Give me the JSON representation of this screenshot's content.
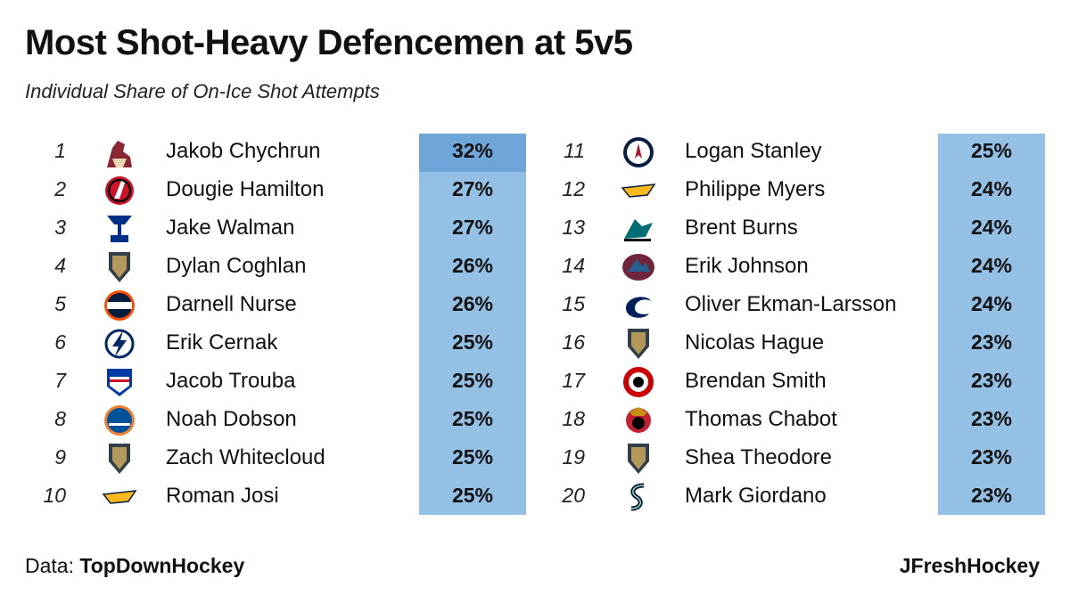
{
  "chart_data": {
    "type": "table",
    "title": "Most Shot-Heavy Defencemen at 5v5",
    "subtitle": "Individual Share of On-Ice Shot Attempts",
    "columns": [
      "rank",
      "team_logo",
      "player",
      "share"
    ],
    "rows": [
      {
        "rank": "1",
        "player": "Jakob Chychrun",
        "value": "32%",
        "team_icon": "arizona-coyotes-logo-icon",
        "logo_color": "#8c2633"
      },
      {
        "rank": "2",
        "player": "Dougie Hamilton",
        "value": "27%",
        "team_icon": "new-jersey-devils-logo-icon",
        "logo_color": "#ce1126"
      },
      {
        "rank": "3",
        "player": "Jake Walman",
        "value": "27%",
        "team_icon": "st-louis-blues-logo-icon",
        "logo_color": "#002f87"
      },
      {
        "rank": "4",
        "player": "Dylan Coghlan",
        "value": "26%",
        "team_icon": "vegas-golden-knights-logo-icon",
        "logo_color": "#b4975a"
      },
      {
        "rank": "5",
        "player": "Darnell Nurse",
        "value": "26%",
        "team_icon": "edmonton-oilers-logo-icon",
        "logo_color": "#041e42"
      },
      {
        "rank": "6",
        "player": "Erik Cernak",
        "value": "25%",
        "team_icon": "tampa-bay-lightning-logo-icon",
        "logo_color": "#002868"
      },
      {
        "rank": "7",
        "player": "Jacob Trouba",
        "value": "25%",
        "team_icon": "new-york-rangers-logo-icon",
        "logo_color": "#0038a8"
      },
      {
        "rank": "8",
        "player": "Noah Dobson",
        "value": "25%",
        "team_icon": "new-york-islanders-logo-icon",
        "logo_color": "#00539b"
      },
      {
        "rank": "9",
        "player": "Zach Whitecloud",
        "value": "25%",
        "team_icon": "vegas-golden-knights-logo-icon",
        "logo_color": "#b4975a"
      },
      {
        "rank": "10",
        "player": "Roman Josi",
        "value": "25%",
        "team_icon": "nashville-predators-logo-icon",
        "logo_color": "#ffb81c"
      },
      {
        "rank": "11",
        "player": "Logan Stanley",
        "value": "25%",
        "team_icon": "winnipeg-jets-logo-icon",
        "logo_color": "#041e42"
      },
      {
        "rank": "12",
        "player": "Philippe Myers",
        "value": "24%",
        "team_icon": "nashville-predators-logo-icon",
        "logo_color": "#ffb81c"
      },
      {
        "rank": "13",
        "player": "Brent Burns",
        "value": "24%",
        "team_icon": "san-jose-sharks-logo-icon",
        "logo_color": "#006d75"
      },
      {
        "rank": "14",
        "player": "Erik Johnson",
        "value": "24%",
        "team_icon": "colorado-avalanche-logo-icon",
        "logo_color": "#6f263d"
      },
      {
        "rank": "15",
        "player": "Oliver Ekman-Larsson",
        "value": "24%",
        "team_icon": "vancouver-canucks-logo-icon",
        "logo_color": "#00205b"
      },
      {
        "rank": "16",
        "player": "Nicolas Hague",
        "value": "23%",
        "team_icon": "vegas-golden-knights-logo-icon",
        "logo_color": "#b4975a"
      },
      {
        "rank": "17",
        "player": "Brendan Smith",
        "value": "23%",
        "team_icon": "carolina-hurricanes-logo-icon",
        "logo_color": "#cc0000"
      },
      {
        "rank": "18",
        "player": "Thomas Chabot",
        "value": "23%",
        "team_icon": "ottawa-senators-logo-icon",
        "logo_color": "#c52032"
      },
      {
        "rank": "19",
        "player": "Shea Theodore",
        "value": "23%",
        "team_icon": "vegas-golden-knights-logo-icon",
        "logo_color": "#b4975a"
      },
      {
        "rank": "20",
        "player": "Mark Giordano",
        "value": "23%",
        "team_icon": "seattle-kraken-logo-icon",
        "logo_color": "#001628"
      }
    ],
    "highlight_rank": "1",
    "colors": {
      "value_column": "#95c0e6",
      "value_highlight": "#6fa6d9"
    }
  },
  "footer": {
    "source_prefix": "Data:",
    "source_name": "TopDownHockey",
    "credit": "JFreshHockey"
  }
}
